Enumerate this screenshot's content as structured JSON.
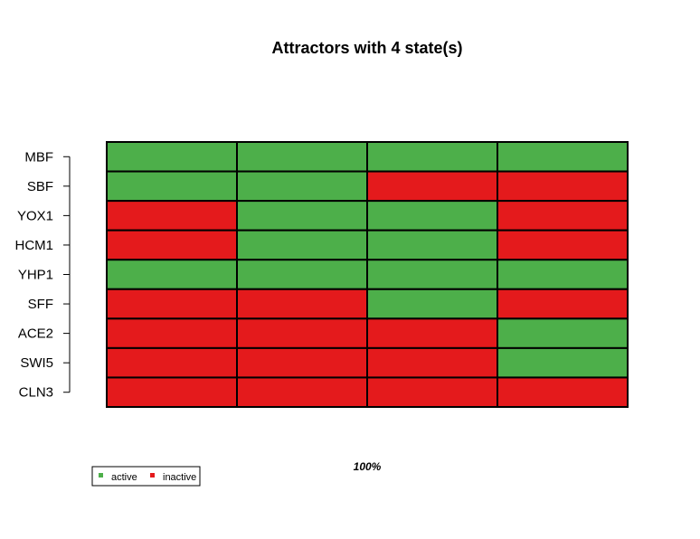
{
  "chart_data": {
    "type": "heatmap",
    "title": "Attractors with 4 state(s)",
    "rows": [
      "MBF",
      "SBF",
      "YOX1",
      "HCM1",
      "YHP1",
      "SFF",
      "ACE2",
      "SWI5",
      "CLN3"
    ],
    "columns": 4,
    "states": [
      [
        1,
        1,
        1,
        1
      ],
      [
        1,
        1,
        0,
        0
      ],
      [
        0,
        1,
        1,
        0
      ],
      [
        0,
        1,
        1,
        0
      ],
      [
        1,
        1,
        1,
        1
      ],
      [
        0,
        0,
        1,
        0
      ],
      [
        0,
        0,
        0,
        1
      ],
      [
        0,
        0,
        0,
        1
      ],
      [
        0,
        0,
        0,
        0
      ]
    ],
    "percentage_label": "100%",
    "legend": [
      {
        "label": "active",
        "color": "#4daf4a"
      },
      {
        "label": "inactive",
        "color": "#e41a1c"
      }
    ],
    "colors": {
      "active": "#4daf4a",
      "inactive": "#e41a1c",
      "border": "#000000"
    }
  }
}
